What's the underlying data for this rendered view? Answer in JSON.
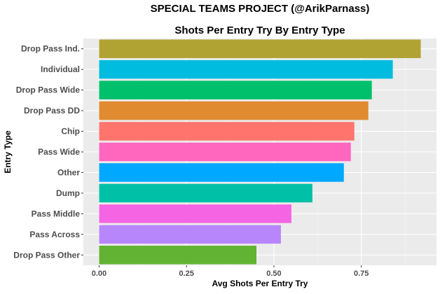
{
  "chart_data": {
    "type": "bar",
    "orientation": "horizontal",
    "title": "SPECIAL TEAMS PROJECT (@ArikParnass)",
    "subtitle": "Shots Per Entry Try By Entry Type",
    "xlabel": "Avg Shots Per Entry Try",
    "ylabel": "Entry Type",
    "xlim": [
      -0.045,
      0.965
    ],
    "x_ticks": [
      0.0,
      0.25,
      0.5,
      0.75
    ],
    "x_tick_labels": [
      "0.00",
      "0.25",
      "0.50",
      "0.75"
    ],
    "grid": true,
    "legend": "none",
    "categories": [
      "Drop Pass Ind.",
      "Individual",
      "Drop Pass Wide",
      "Drop Pass DD",
      "Chip",
      "Pass Wide",
      "Other",
      "Dump",
      "Pass Middle",
      "Pass Across",
      "Drop Pass Other"
    ],
    "values": [
      0.92,
      0.84,
      0.78,
      0.77,
      0.73,
      0.72,
      0.7,
      0.61,
      0.55,
      0.52,
      0.45
    ],
    "colors": [
      "#B1A234",
      "#00BCDE",
      "#00C06B",
      "#E08B2F",
      "#FF746D",
      "#FF66BE",
      "#00A8FF",
      "#00C1A8",
      "#F565E3",
      "#B886FB",
      "#62B333"
    ]
  }
}
